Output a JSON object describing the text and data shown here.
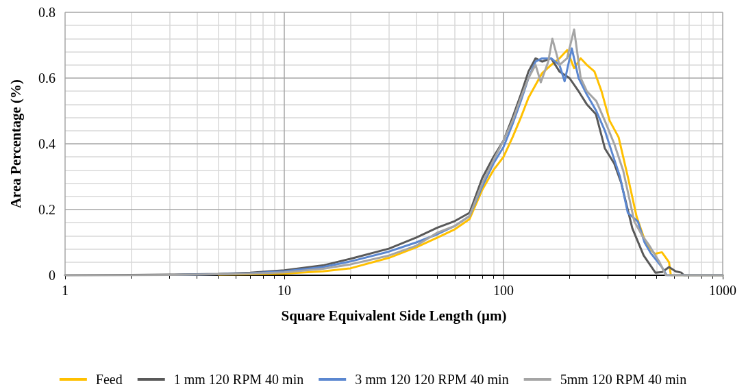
{
  "chart_data": {
    "type": "line",
    "xlabel": "Square Equivalent Side Length (µm)",
    "ylabel": "Area Percentage (%)",
    "log": "x",
    "xlim": [
      1,
      1000
    ],
    "xticks": [
      1,
      10,
      100,
      1000
    ],
    "ylim": [
      0,
      0.8
    ],
    "yticks": [
      0,
      0.2,
      0.4,
      0.6,
      0.8
    ],
    "grid": true,
    "legend": "bottom",
    "marker": "none",
    "line_style": "solid",
    "series": [
      {
        "name": "Feed",
        "color": "#ffc000",
        "x": [
          5,
          7,
          10,
          15,
          20,
          30,
          40,
          50,
          60,
          70,
          80,
          90,
          100,
          110,
          120,
          130,
          150,
          165,
          180,
          195,
          210,
          225,
          240,
          260,
          280,
          305,
          335,
          369,
          405,
          448,
          490,
          528,
          569,
          580,
          700,
          1000
        ],
        "values": [
          0.002,
          0.003,
          0.005,
          0.012,
          0.021,
          0.053,
          0.085,
          0.115,
          0.14,
          0.171,
          0.26,
          0.32,
          0.36,
          0.42,
          0.48,
          0.54,
          0.615,
          0.64,
          0.66,
          0.685,
          0.63,
          0.66,
          0.64,
          0.62,
          0.56,
          0.47,
          0.42,
          0.3,
          0.178,
          0.094,
          0.065,
          0.07,
          0.04,
          0,
          0,
          0
        ]
      },
      {
        "name": "1 mm 120 RPM 40 min",
        "color": "#595959",
        "x": [
          1,
          2,
          3,
          5,
          7,
          10,
          15,
          20,
          30,
          40,
          50,
          60,
          70,
          80,
          90,
          100,
          110,
          120,
          130,
          140,
          150,
          165,
          180,
          200,
          220,
          240,
          264,
          290,
          320,
          344,
          387,
          436,
          493,
          530,
          569,
          610,
          648,
          665,
          1000
        ],
        "values": [
          0,
          0.001,
          0.002,
          0.004,
          0.008,
          0.015,
          0.03,
          0.05,
          0.081,
          0.115,
          0.145,
          0.165,
          0.19,
          0.296,
          0.36,
          0.41,
          0.48,
          0.55,
          0.62,
          0.66,
          0.65,
          0.66,
          0.62,
          0.6,
          0.56,
          0.52,
          0.49,
          0.386,
          0.34,
          0.282,
          0.143,
          0.06,
          0.008,
          0.01,
          0.025,
          0.012,
          0.008,
          0,
          0
        ]
      },
      {
        "name": "3 mm 120 120 RPM 40 min",
        "color": "#5b87d0",
        "x": [
          3,
          5,
          7,
          10,
          15,
          20,
          30,
          40,
          50,
          60,
          70,
          80,
          90,
          100,
          110,
          120,
          130,
          140,
          150,
          165,
          180,
          190,
          205,
          220,
          240,
          265,
          290,
          318,
          340,
          369,
          410,
          440,
          470,
          528,
          555,
          1000
        ],
        "values": [
          0.001,
          0.003,
          0.006,
          0.012,
          0.025,
          0.042,
          0.072,
          0.1,
          0.125,
          0.15,
          0.18,
          0.27,
          0.34,
          0.39,
          0.46,
          0.53,
          0.6,
          0.65,
          0.66,
          0.66,
          0.64,
          0.59,
          0.69,
          0.6,
          0.55,
          0.5,
          0.44,
          0.358,
          0.3,
          0.19,
          0.164,
          0.1,
          0.067,
          0.025,
          0,
          0
        ]
      },
      {
        "name": "5mm 120 RPM 40 min",
        "color": "#a5a5a5",
        "x": [
          1,
          2,
          3,
          5,
          7,
          10,
          15,
          20,
          30,
          40,
          50,
          60,
          70,
          80,
          90,
          100,
          110,
          120,
          130,
          140,
          148,
          160,
          167,
          180,
          195,
          210,
          225,
          240,
          265,
          290,
          320,
          352,
          395,
          430,
          459,
          515,
          550,
          1000
        ],
        "values": [
          0,
          0,
          0.001,
          0.003,
          0.005,
          0.009,
          0.02,
          0.033,
          0.06,
          0.09,
          0.13,
          0.15,
          0.18,
          0.28,
          0.35,
          0.41,
          0.47,
          0.54,
          0.6,
          0.64,
          0.587,
          0.65,
          0.72,
          0.64,
          0.66,
          0.748,
          0.6,
          0.56,
          0.53,
          0.47,
          0.4,
          0.317,
          0.164,
          0.12,
          0.094,
          0.04,
          0,
          0
        ]
      }
    ]
  }
}
